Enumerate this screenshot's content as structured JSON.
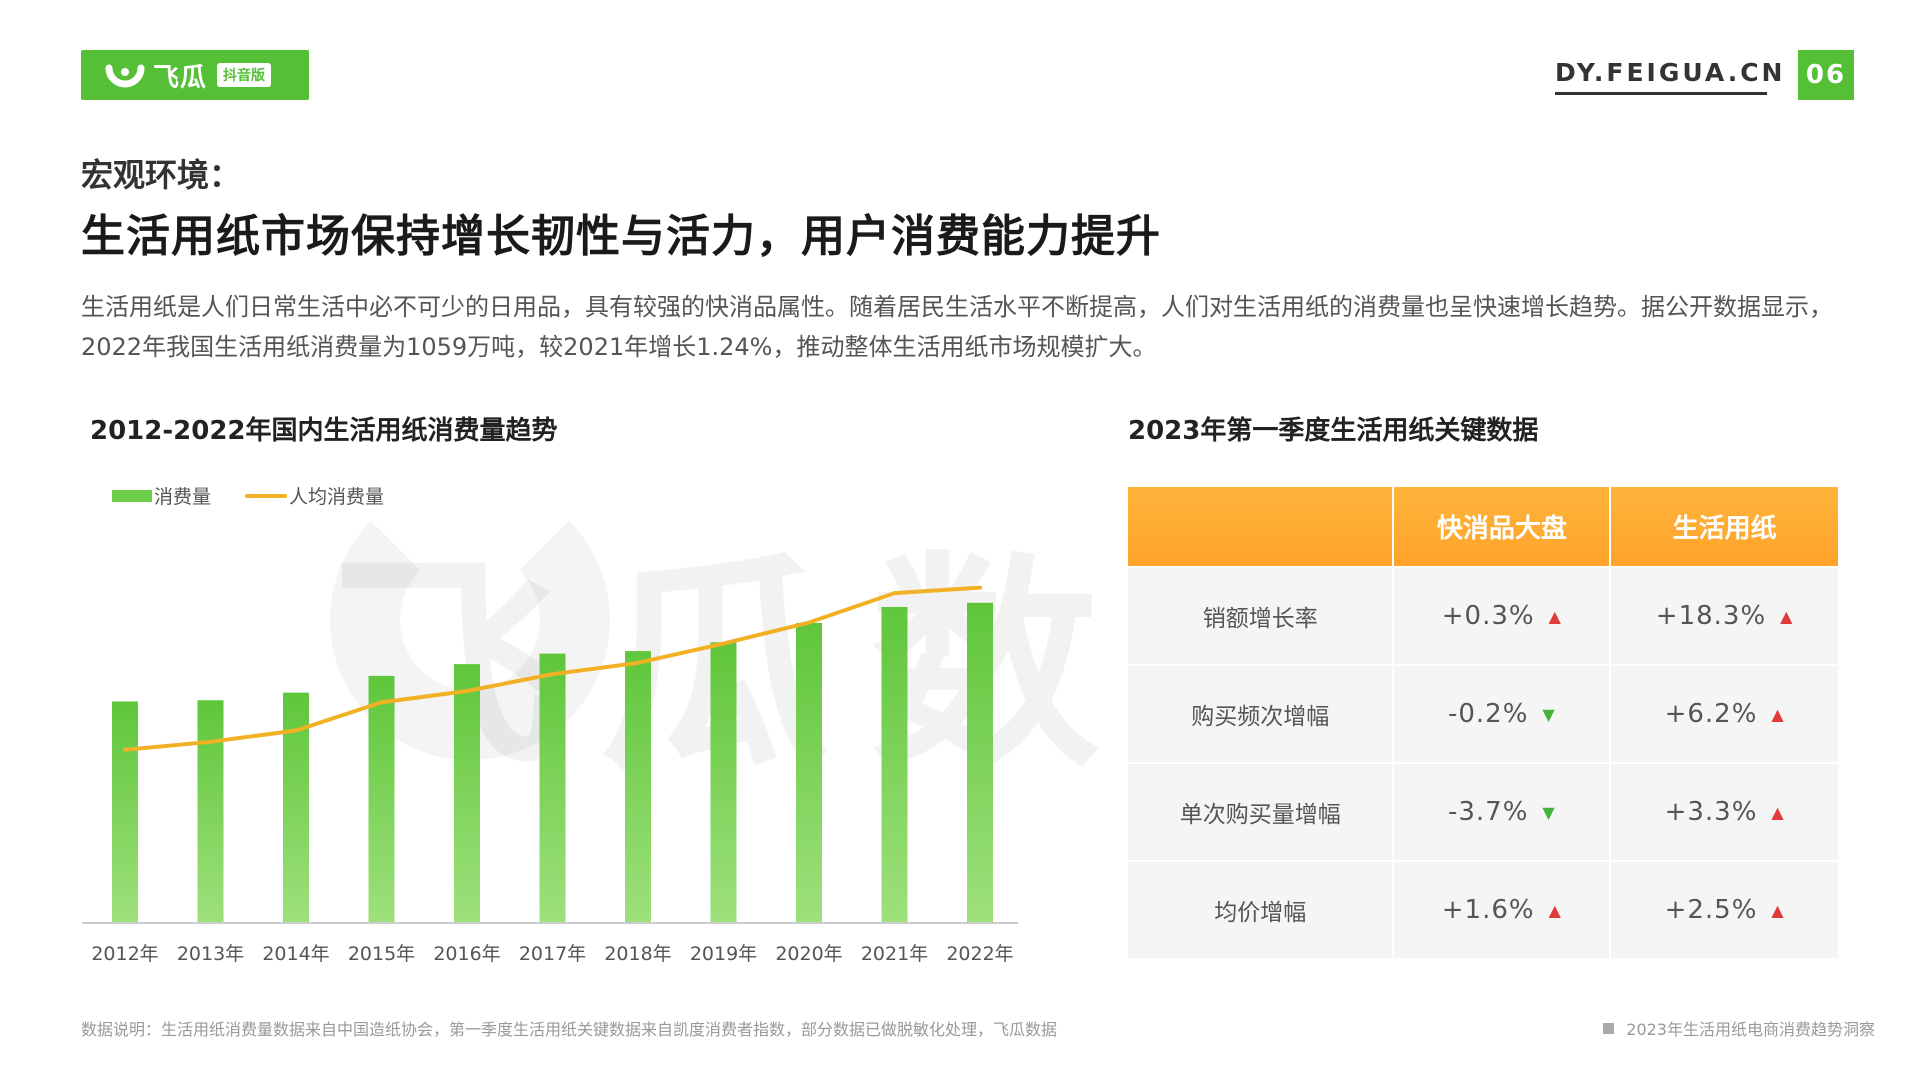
{
  "header": {
    "logo_name": "飞瓜",
    "logo_sub": "抖音版",
    "site": "DY.FEIGUA.CN",
    "page_number": "06"
  },
  "section_label": "宏观环境：",
  "headline": "生活用纸市场保持增长韧性与活力，用户消费能力提升",
  "intro": "生活用纸是人们日常生活中必不可少的日用品，具有较强的快消品属性。随着居民生活水平不断提高，人们对生活用纸的消费量也呈快速增长趋势。据公开数据显示，2022年我国生活用纸消费量为1059万吨，较2021年增长1.24%，推动整体生活用纸市场规模扩大。",
  "watermark": "飞瓜数据",
  "chart_data": {
    "type": "bar",
    "title": "2012-2022年国内生活用纸消费量趋势",
    "categories": [
      "2012年",
      "2013年",
      "2014年",
      "2015年",
      "2016年",
      "2017年",
      "2018年",
      "2019年",
      "2020年",
      "2021年",
      "2022年"
    ],
    "series": [
      {
        "name": "消费量",
        "type": "bar",
        "color": "#6fcf4a",
        "values": [
          52.5,
          52.8,
          54.6,
          58.6,
          61.4,
          63.9,
          64.5,
          66.6,
          71.2,
          75.0,
          76.0
        ]
      },
      {
        "name": "人均消费量",
        "type": "line",
        "color": "#f2b124",
        "values": [
          41.0,
          42.9,
          45.6,
          52.3,
          55.0,
          59.0,
          61.7,
          66.3,
          71.3,
          78.3,
          79.6
        ]
      }
    ],
    "ylim": [
      0,
      100
    ],
    "legend": "top-left",
    "grid": false
  },
  "table": {
    "title": "2023年第一季度生活用纸关键数据",
    "headers": [
      "",
      "快消品大盘",
      "生活用纸"
    ],
    "rows": [
      {
        "label": "销额增长率",
        "fmcg": "+0.3%",
        "fmcg_dir": "up",
        "paper": "+18.3%",
        "paper_dir": "up"
      },
      {
        "label": "购买频次增幅",
        "fmcg": "-0.2%",
        "fmcg_dir": "down",
        "paper": "+6.2%",
        "paper_dir": "up"
      },
      {
        "label": "单次购买量增幅",
        "fmcg": "-3.7%",
        "fmcg_dir": "down",
        "paper": "+3.3%",
        "paper_dir": "up"
      },
      {
        "label": "均价增幅",
        "fmcg": "+1.6%",
        "fmcg_dir": "up",
        "paper": "+2.5%",
        "paper_dir": "up"
      }
    ],
    "up_color": "#e03a3a",
    "down_color": "#43b43a"
  },
  "footer": {
    "source": "数据说明：生活用纸消费量数据来自中国造纸协会，第一季度生活用纸关键数据来自凯度消费者指数，部分数据已做脱敏化处理，飞瓜数据",
    "report": "2023年生活用纸电商消费趋势洞察"
  }
}
